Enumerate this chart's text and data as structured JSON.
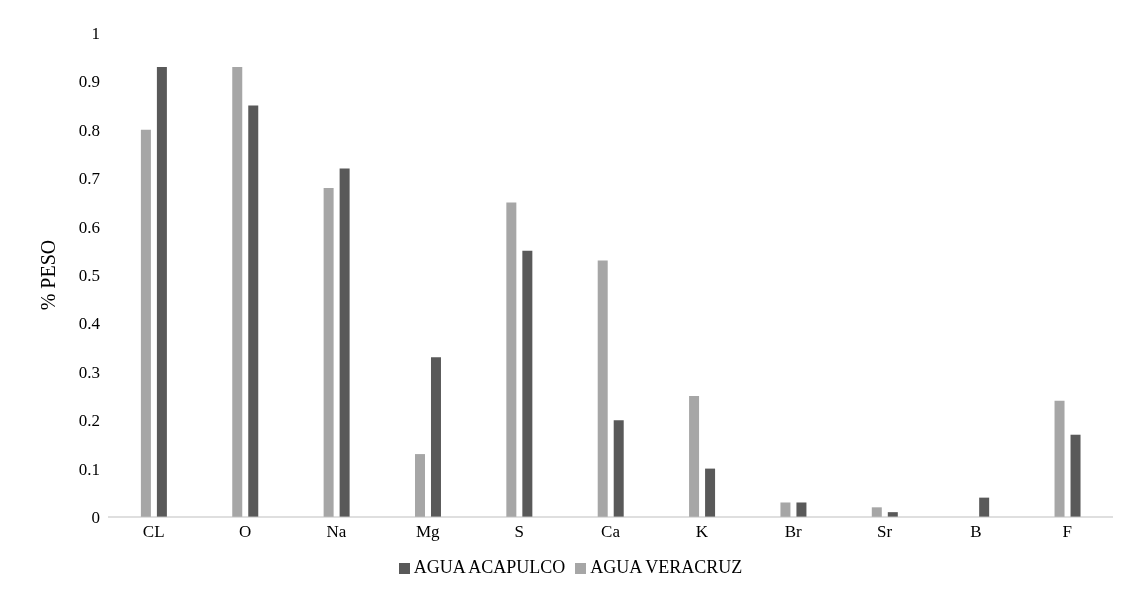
{
  "chart_data": {
    "type": "bar",
    "ylabel": "% PESO",
    "categories": [
      "CL",
      "O",
      "Na",
      "Mg",
      "S",
      "Ca",
      "K",
      "Br",
      "Sr",
      "B",
      "F"
    ],
    "series": [
      {
        "name": "AGUA VERACRUZ",
        "color": "#a6a6a6",
        "values": [
          0.8,
          0.93,
          0.68,
          0.13,
          0.65,
          0.53,
          0.25,
          0.03,
          0.02,
          0,
          0.24
        ]
      },
      {
        "name": "AGUA ACAPULCO",
        "color": "#595959",
        "values": [
          0.93,
          0.85,
          0.72,
          0.33,
          0.55,
          0.2,
          0.1,
          0.03,
          0.01,
          0.04,
          0.17
        ]
      }
    ],
    "ylim": [
      0,
      1
    ],
    "yticks": [
      0,
      0.1,
      0.2,
      0.3,
      0.4,
      0.5,
      0.6,
      0.7,
      0.8,
      0.9,
      1
    ],
    "grid": false,
    "legend": "bottom"
  }
}
